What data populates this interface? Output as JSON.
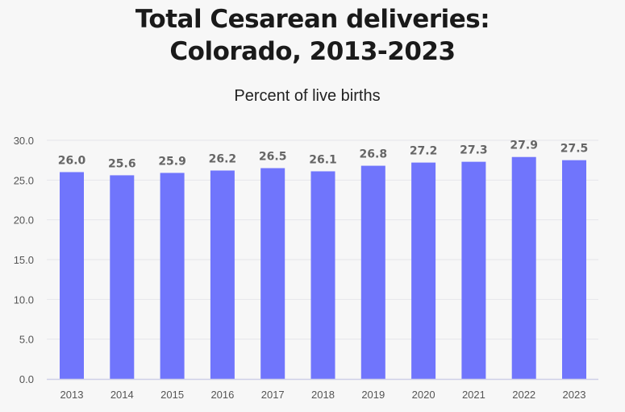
{
  "chart_data": {
    "type": "bar",
    "title": "Total Cesarean deliveries: Colorado, 2013-2023",
    "title_lines": [
      "Total Cesarean deliveries:",
      "Colorado, 2013-2023"
    ],
    "subtitle": "Percent of live births",
    "xlabel": "",
    "ylabel": "",
    "categories": [
      "2013",
      "2014",
      "2015",
      "2016",
      "2017",
      "2018",
      "2019",
      "2020",
      "2021",
      "2022",
      "2023"
    ],
    "values": [
      26.0,
      25.6,
      25.9,
      26.2,
      26.5,
      26.1,
      26.8,
      27.2,
      27.3,
      27.9,
      27.5
    ],
    "data_labels": [
      "26.0",
      "25.6",
      "25.9",
      "26.2",
      "26.5",
      "26.1",
      "26.8",
      "27.2",
      "27.3",
      "27.9",
      "27.5"
    ],
    "ylim": [
      0,
      30
    ],
    "yticks": [
      "0.0",
      "5.0",
      "10.0",
      "15.0",
      "20.0",
      "25.0",
      "30.0"
    ],
    "grid": true,
    "legend": "none",
    "bar_color": "#7075fc",
    "background": "#f7f7f7"
  }
}
